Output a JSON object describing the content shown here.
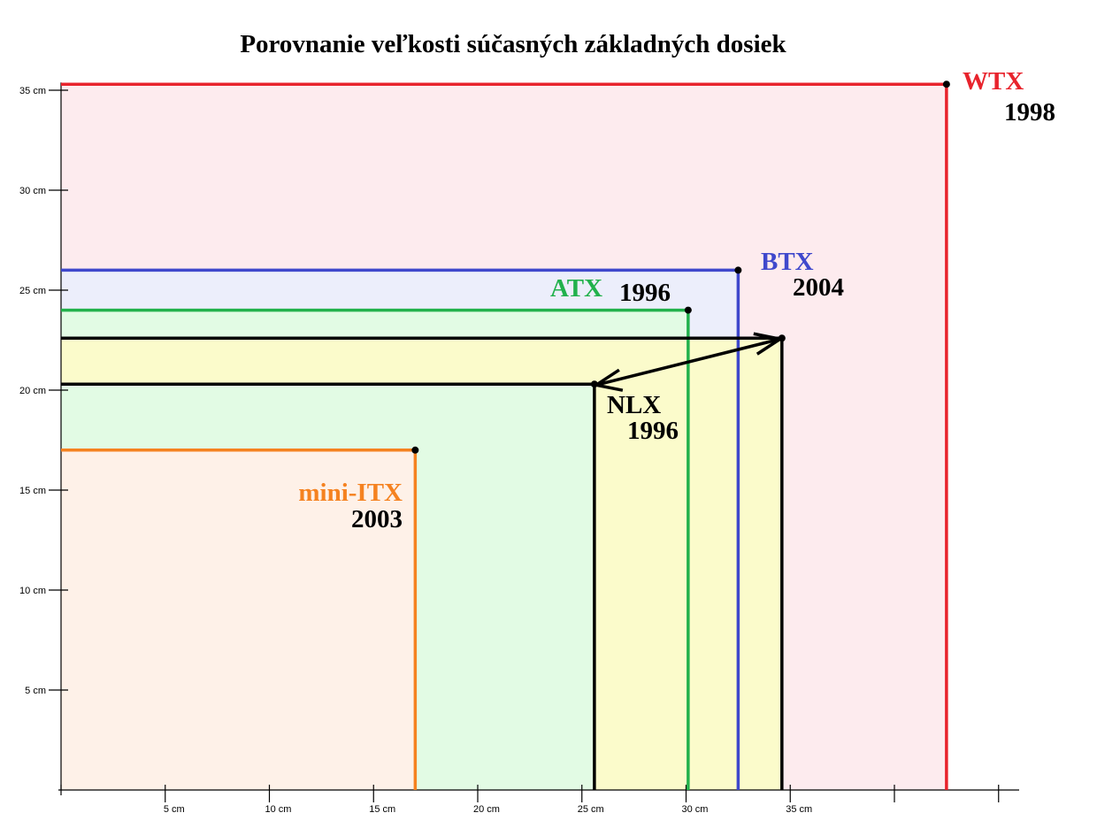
{
  "chart_data": {
    "type": "area",
    "title": "Porovnanie veľkosti súčasných základných dosiek",
    "xlabel": "",
    "ylabel": "",
    "unit": "cm",
    "xlim": [
      0,
      47.3
    ],
    "ylim": [
      0,
      35.3
    ],
    "x_ticks": [
      {
        "value": 5,
        "label": "5 cm"
      },
      {
        "value": 10,
        "label": "10 cm"
      },
      {
        "value": 15,
        "label": "15 cm"
      },
      {
        "value": 20,
        "label": "20 cm"
      },
      {
        "value": 25,
        "label": "25 cm"
      },
      {
        "value": 30,
        "label": "30 cm"
      },
      {
        "value": 35,
        "label": "35 cm"
      },
      {
        "value": 40,
        "label": ""
      },
      {
        "value": 45,
        "label": ""
      }
    ],
    "y_ticks": [
      {
        "value": 5,
        "label": "5 cm"
      },
      {
        "value": 10,
        "label": "10 cm"
      },
      {
        "value": 15,
        "label": "15 cm"
      },
      {
        "value": 20,
        "label": "20 cm"
      },
      {
        "value": 25,
        "label": "25 cm"
      },
      {
        "value": 30,
        "label": "30 cm"
      },
      {
        "value": 35,
        "label": "35 cm"
      }
    ],
    "boards": [
      {
        "name": "WTX",
        "year": "1998",
        "width": 42.5,
        "height": 35.3,
        "color": "#e8232c",
        "fill": "#fdebee",
        "label_color": "#e8232c"
      },
      {
        "name": "BTX",
        "year": "2004",
        "width": 32.5,
        "height": 26.0,
        "color": "#3f48cc",
        "fill": "#eceefb",
        "label_color": "#3f48cc"
      },
      {
        "name": "ATX",
        "year": "1996",
        "width": 30.1,
        "height": 24.0,
        "color": "#22b14c",
        "fill": "#e2fbe4",
        "label_color": "#22b14c"
      },
      {
        "name": "NLX",
        "year": "1996",
        "width": 25.6,
        "width_max": 34.6,
        "height": 20.3,
        "height_max": 22.6,
        "color": "#000000",
        "fill": "#fbfbcb",
        "label_color": "#000000"
      },
      {
        "name": "mini-ITX",
        "year": "2003",
        "width": 17.0,
        "height": 17.0,
        "color": "#f58220",
        "fill": "#fef1e8",
        "label_color": "#f58220"
      }
    ]
  }
}
